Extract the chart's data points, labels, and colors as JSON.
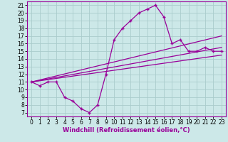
{
  "title": "",
  "xlabel": "Windchill (Refroidissement éolien,°C)",
  "background_color": "#cce8e8",
  "grid_color": "#aacccc",
  "line_color": "#990099",
  "xlim": [
    -0.5,
    23.5
  ],
  "ylim": [
    6.5,
    21.5
  ],
  "xticks": [
    0,
    1,
    2,
    3,
    4,
    5,
    6,
    7,
    8,
    9,
    10,
    11,
    12,
    13,
    14,
    15,
    16,
    17,
    18,
    19,
    20,
    21,
    22,
    23
  ],
  "yticks": [
    7,
    8,
    9,
    10,
    11,
    12,
    13,
    14,
    15,
    16,
    17,
    18,
    19,
    20,
    21
  ],
  "curve_x": [
    0,
    1,
    2,
    3,
    4,
    5,
    6,
    7,
    8,
    9,
    10,
    11,
    12,
    13,
    14,
    15,
    16,
    17,
    18,
    19,
    20,
    21,
    22,
    23
  ],
  "curve_y": [
    11,
    10.5,
    11,
    11,
    9,
    8.5,
    7.5,
    7,
    8,
    12,
    16.5,
    18,
    19,
    20,
    20.5,
    21,
    19.5,
    16,
    16.5,
    15,
    15,
    15.5,
    15,
    15
  ],
  "line2_x": [
    0,
    23
  ],
  "line2_y": [
    11,
    17.0
  ],
  "line3_x": [
    0,
    23
  ],
  "line3_y": [
    11,
    15.5
  ],
  "line4_x": [
    0,
    23
  ],
  "line4_y": [
    11,
    14.5
  ],
  "tick_fontsize": 5.5,
  "xlabel_fontsize": 6.0,
  "fig_width": 3.2,
  "fig_height": 2.0,
  "dpi": 100
}
